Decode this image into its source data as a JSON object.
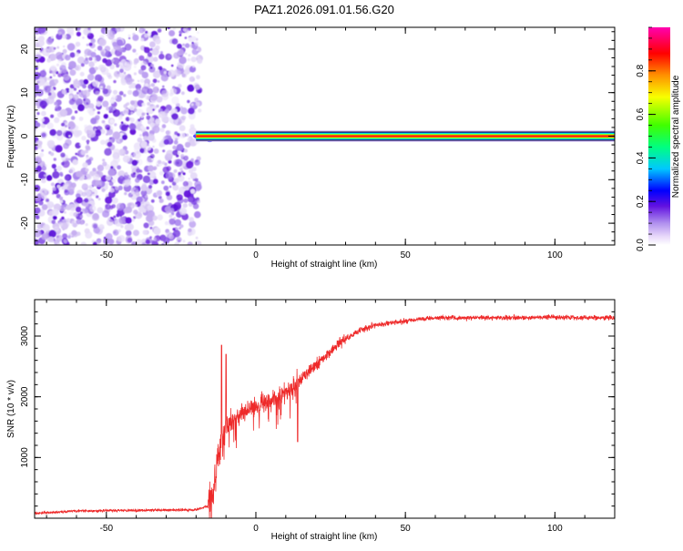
{
  "title": "PAZ1.2026.091.01.56.G20",
  "chart_data": [
    {
      "type": "heatmap",
      "xlabel": "Height of straight line (km)",
      "ylabel": "Frequency (Hz)",
      "xlim": [
        -74,
        120
      ],
      "ylim": [
        -25,
        25
      ],
      "xticks": [
        -50,
        0,
        50,
        100
      ],
      "xtick_labels": [
        "-50",
        "0",
        "50",
        "100"
      ],
      "yticks": [
        -20,
        -10,
        0,
        10,
        20
      ],
      "ytick_labels": [
        "-20",
        "-10",
        "0",
        "10",
        "20"
      ],
      "noise_region": {
        "x": [
          -74,
          -20
        ],
        "y": [
          -25,
          25
        ]
      },
      "signal_line": {
        "frequency": 0,
        "x_start": -20,
        "x_end": 120
      },
      "colorbar": {
        "label": "Normalized spectral amplitude",
        "range": [
          0,
          1
        ],
        "ticks": [
          0.0,
          0.2,
          0.4,
          0.6,
          0.8
        ],
        "tick_labels": [
          "0.0",
          "0.2",
          "0.4",
          "0.6",
          "0.8"
        ],
        "colors": [
          "#ffffff",
          "#c8a8f0",
          "#7a18d8",
          "#0000ff",
          "#00e0ff",
          "#00ff40",
          "#f0ff00",
          "#ff8000",
          "#ff0000",
          "#ff00a0"
        ]
      }
    },
    {
      "type": "line",
      "xlabel": "Height of straight line (km)",
      "ylabel": "SNR (10 * v/v)",
      "xlim": [
        -74,
        120
      ],
      "ylim": [
        0,
        3600
      ],
      "xticks": [
        -50,
        0,
        50,
        100
      ],
      "xtick_labels": [
        "-50",
        "0",
        "50",
        "100"
      ],
      "yticks": [
        1000,
        2000,
        3000
      ],
      "ytick_labels": [
        "1000",
        "2000",
        "3000"
      ],
      "color": "#ee2a2a",
      "trend": {
        "x": [
          -74,
          -60,
          -40,
          -20,
          -16,
          -14,
          -12,
          -10,
          -5,
          0,
          5,
          10,
          15,
          20,
          25,
          30,
          35,
          40,
          50,
          60,
          80,
          100,
          120
        ],
        "y": [
          80,
          120,
          130,
          140,
          200,
          500,
          1100,
          1500,
          1750,
          1850,
          1950,
          2100,
          2300,
          2520,
          2750,
          2950,
          3100,
          3180,
          3250,
          3300,
          3300,
          3310,
          3300
        ]
      },
      "spike_events": [
        {
          "x": -11.5,
          "y": 2850
        },
        {
          "x": -10,
          "y": 2700
        },
        {
          "x": 14,
          "y": 1260
        }
      ]
    }
  ]
}
